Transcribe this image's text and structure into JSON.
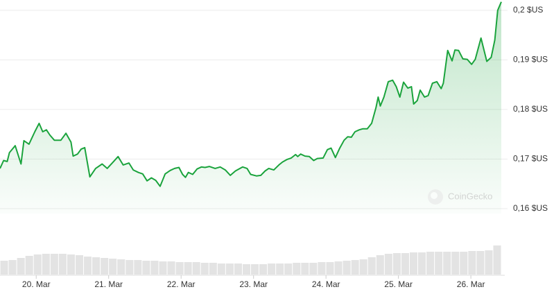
{
  "chart_data": {
    "type": "line",
    "x": [
      19.5,
      19.55,
      19.6,
      19.63,
      19.71,
      19.79,
      19.83,
      19.9,
      19.98,
      20.04,
      20.09,
      20.14,
      20.19,
      20.25,
      20.34,
      20.41,
      20.48,
      20.51,
      20.57,
      20.62,
      20.67,
      20.74,
      20.82,
      20.91,
      20.98,
      21.05,
      21.13,
      21.2,
      21.28,
      21.34,
      21.41,
      21.47,
      21.53,
      21.59,
      21.65,
      21.71,
      21.78,
      21.85,
      21.91,
      21.97,
      22.02,
      22.06,
      22.1,
      22.16,
      22.22,
      22.28,
      22.33,
      22.39,
      22.47,
      22.54,
      22.61,
      22.68,
      22.75,
      22.85,
      22.91,
      22.96,
      23.04,
      23.1,
      23.16,
      23.21,
      23.28,
      23.35,
      23.4,
      23.46,
      23.52,
      23.58,
      23.61,
      23.65,
      23.71,
      23.77,
      23.83,
      23.88,
      23.96,
      24.02,
      24.07,
      24.13,
      24.19,
      24.25,
      24.3,
      24.35,
      24.4,
      24.46,
      24.51,
      24.57,
      24.63,
      24.69,
      24.72,
      24.75,
      24.8,
      24.86,
      24.92,
      24.97,
      25.02,
      25.07,
      25.13,
      25.18,
      25.21,
      25.26,
      25.3,
      25.36,
      25.41,
      25.47,
      25.53,
      25.59,
      25.62,
      25.68,
      25.74,
      25.78,
      25.83,
      25.89,
      25.95,
      26.01,
      26.06,
      26.14,
      26.22,
      26.28,
      26.33,
      26.37,
      26.42
    ],
    "series": [
      {
        "color": "#1aa33c",
        "values": [
          0.1681,
          0.1697,
          0.1695,
          0.1713,
          0.1727,
          0.169,
          0.1737,
          0.173,
          0.1755,
          0.1772,
          0.1755,
          0.1759,
          0.1748,
          0.1738,
          0.1738,
          0.1752,
          0.1734,
          0.1706,
          0.171,
          0.172,
          0.1723,
          0.1664,
          0.1681,
          0.169,
          0.1681,
          0.1692,
          0.1705,
          0.1688,
          0.1692,
          0.1678,
          0.1673,
          0.167,
          0.1656,
          0.1662,
          0.1657,
          0.1645,
          0.167,
          0.1677,
          0.1681,
          0.1683,
          0.1669,
          0.1663,
          0.1673,
          0.1669,
          0.168,
          0.1684,
          0.1683,
          0.1685,
          0.1681,
          0.1684,
          0.1678,
          0.1667,
          0.1676,
          0.1684,
          0.1681,
          0.1669,
          0.1666,
          0.1667,
          0.1676,
          0.1681,
          0.1678,
          0.1688,
          0.1694,
          0.1699,
          0.1702,
          0.1709,
          0.1705,
          0.171,
          0.1706,
          0.1705,
          0.1697,
          0.1701,
          0.1702,
          0.1719,
          0.1722,
          0.1703,
          0.1722,
          0.1738,
          0.1745,
          0.1744,
          0.1755,
          0.1759,
          0.1761,
          0.1761,
          0.1772,
          0.1804,
          0.1825,
          0.1807,
          0.1825,
          0.1856,
          0.1859,
          0.1846,
          0.1825,
          0.1855,
          0.1843,
          0.1846,
          0.1811,
          0.1818,
          0.1839,
          0.1825,
          0.1828,
          0.1853,
          0.1856,
          0.1842,
          0.1853,
          0.1919,
          0.1898,
          0.192,
          0.1919,
          0.1902,
          0.1901,
          0.1891,
          0.1901,
          0.1944,
          0.1897,
          0.1905,
          0.194,
          0.2,
          0.2017
        ]
      }
    ],
    "xlim": [
      19.5,
      26.42
    ],
    "xticks": [
      {
        "value": 20,
        "label": "20. Mar"
      },
      {
        "value": 21,
        "label": "21. Mar"
      },
      {
        "value": 22,
        "label": "22. Mar"
      },
      {
        "value": 23,
        "label": "23. Mar"
      },
      {
        "value": 24,
        "label": "24. Mar"
      },
      {
        "value": 25,
        "label": "25. Mar"
      },
      {
        "value": 26,
        "label": "26. Mar"
      }
    ],
    "ylim": [
      0.159,
      0.2018
    ],
    "yticks": [
      {
        "value": 0.16,
        "label": "0,16 $US"
      },
      {
        "value": 0.17,
        "label": "0,17 $US"
      },
      {
        "value": 0.18,
        "label": "0,18 $US"
      },
      {
        "value": 0.19,
        "label": "0,19 $US"
      },
      {
        "value": 0.2,
        "label": "0,2 $US"
      }
    ],
    "grid": true,
    "volume": {
      "color": "#e3e3e3",
      "ylim": [
        0,
        45
      ],
      "values": [
        20,
        21,
        24,
        27,
        29,
        30,
        30,
        30,
        29,
        28,
        26,
        25,
        24,
        23,
        22,
        21,
        21,
        20,
        20,
        19,
        19,
        18,
        18,
        18,
        17,
        17,
        16,
        16,
        16,
        15,
        15,
        15,
        16,
        16,
        16,
        17,
        17,
        17,
        18,
        18,
        19,
        20,
        21,
        22,
        25,
        28,
        30,
        31,
        31,
        32,
        32,
        33,
        33,
        33,
        33,
        33,
        34,
        34,
        35,
        42
      ]
    },
    "watermark": "CoinGecko"
  }
}
